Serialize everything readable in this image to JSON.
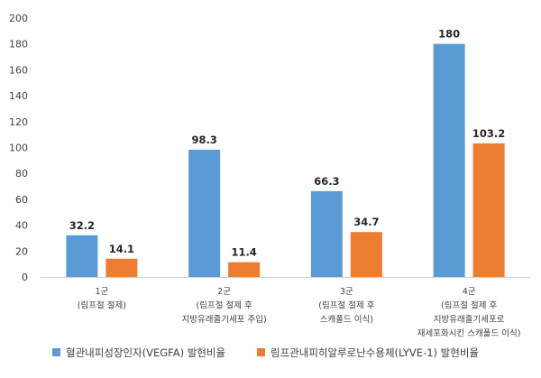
{
  "chart_data": {
    "type": "bar",
    "categories": [
      [
        "1군",
        "(림프절 절제)"
      ],
      [
        "2군",
        "(림프절 절제 후",
        "지방유래줄기세포 주입)"
      ],
      [
        "3군",
        "(림프절 절제 후",
        "스캐폴드 이식)"
      ],
      [
        "4군",
        "(림프절 절제 후",
        "지방유래줄기세포로",
        "재세포화시킨 스캐폴드 이식)"
      ]
    ],
    "series": [
      {
        "name": "혈관내피성장인자(VEGFA) 발현비율",
        "values": [
          32.2,
          98.3,
          66.3,
          180
        ],
        "labels": [
          "32.2",
          "98.3",
          "66.3",
          "180"
        ],
        "color": "#5B9BD5"
      },
      {
        "name": "림프관내피히알루로난수용체(LYVE-1) 발현비율",
        "values": [
          14.1,
          11.4,
          34.7,
          103.2
        ],
        "labels": [
          "14.1",
          "11.4",
          "34.7",
          "103.2"
        ],
        "color": "#ED7D31"
      }
    ],
    "ylim": [
      0,
      200
    ],
    "yticks": [
      "0",
      "20",
      "40",
      "60",
      "80",
      "100",
      "120",
      "140",
      "160",
      "180",
      "200"
    ],
    "grid": false,
    "legend": "bottom-left"
  }
}
